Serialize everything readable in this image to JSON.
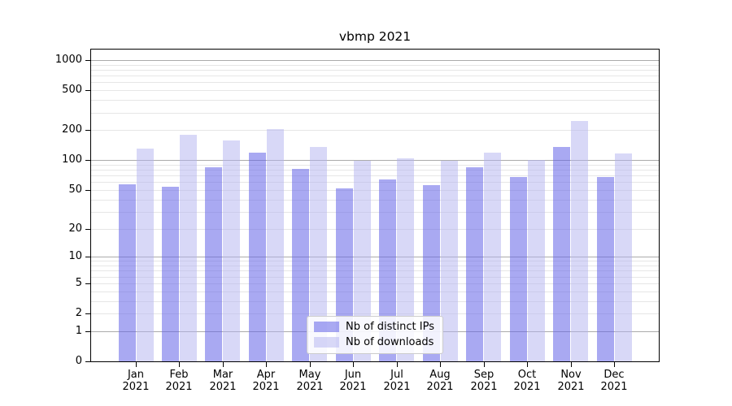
{
  "chart_data": {
    "type": "bar",
    "title": "vbmp 2021",
    "categories": [
      "Jan",
      "Feb",
      "Mar",
      "Apr",
      "May",
      "Jun",
      "Jul",
      "Aug",
      "Sep",
      "Oct",
      "Nov",
      "Dec"
    ],
    "category_year": "2021",
    "series": [
      {
        "name": "Nb of distinct IPs",
        "color": "rgba(98,98,232,0.55)",
        "values": [
          57,
          54,
          84,
          118,
          81,
          52,
          64,
          56,
          85,
          67,
          135,
          68
        ]
      },
      {
        "name": "Nb of downloads",
        "color": "rgba(177,177,240,0.5)",
        "values": [
          130,
          180,
          156,
          203,
          136,
          98,
          104,
          98,
          119,
          100,
          246,
          116
        ]
      }
    ],
    "y_axis": {
      "scale": "log1p",
      "tick_labels": [
        0,
        1,
        2,
        5,
        10,
        20,
        50,
        100,
        200,
        500,
        1000
      ],
      "major_gridlines": [
        1,
        10,
        100,
        1000
      ],
      "minor_gridlines": [
        2,
        3,
        4,
        5,
        6,
        7,
        8,
        9,
        20,
        30,
        40,
        50,
        60,
        70,
        80,
        90,
        200,
        300,
        400,
        500,
        600,
        700,
        800,
        900
      ],
      "top_value": 1000
    },
    "legend": {
      "position": "lower center"
    },
    "grid": true
  },
  "colors": {
    "grid_major": "#ababab",
    "grid_minor": "#e6e6e6",
    "axis_frame": "#000000",
    "text": "#000000",
    "legend_border": "#cccccc",
    "legend_bg": "rgba(255,255,255,0.85)"
  }
}
